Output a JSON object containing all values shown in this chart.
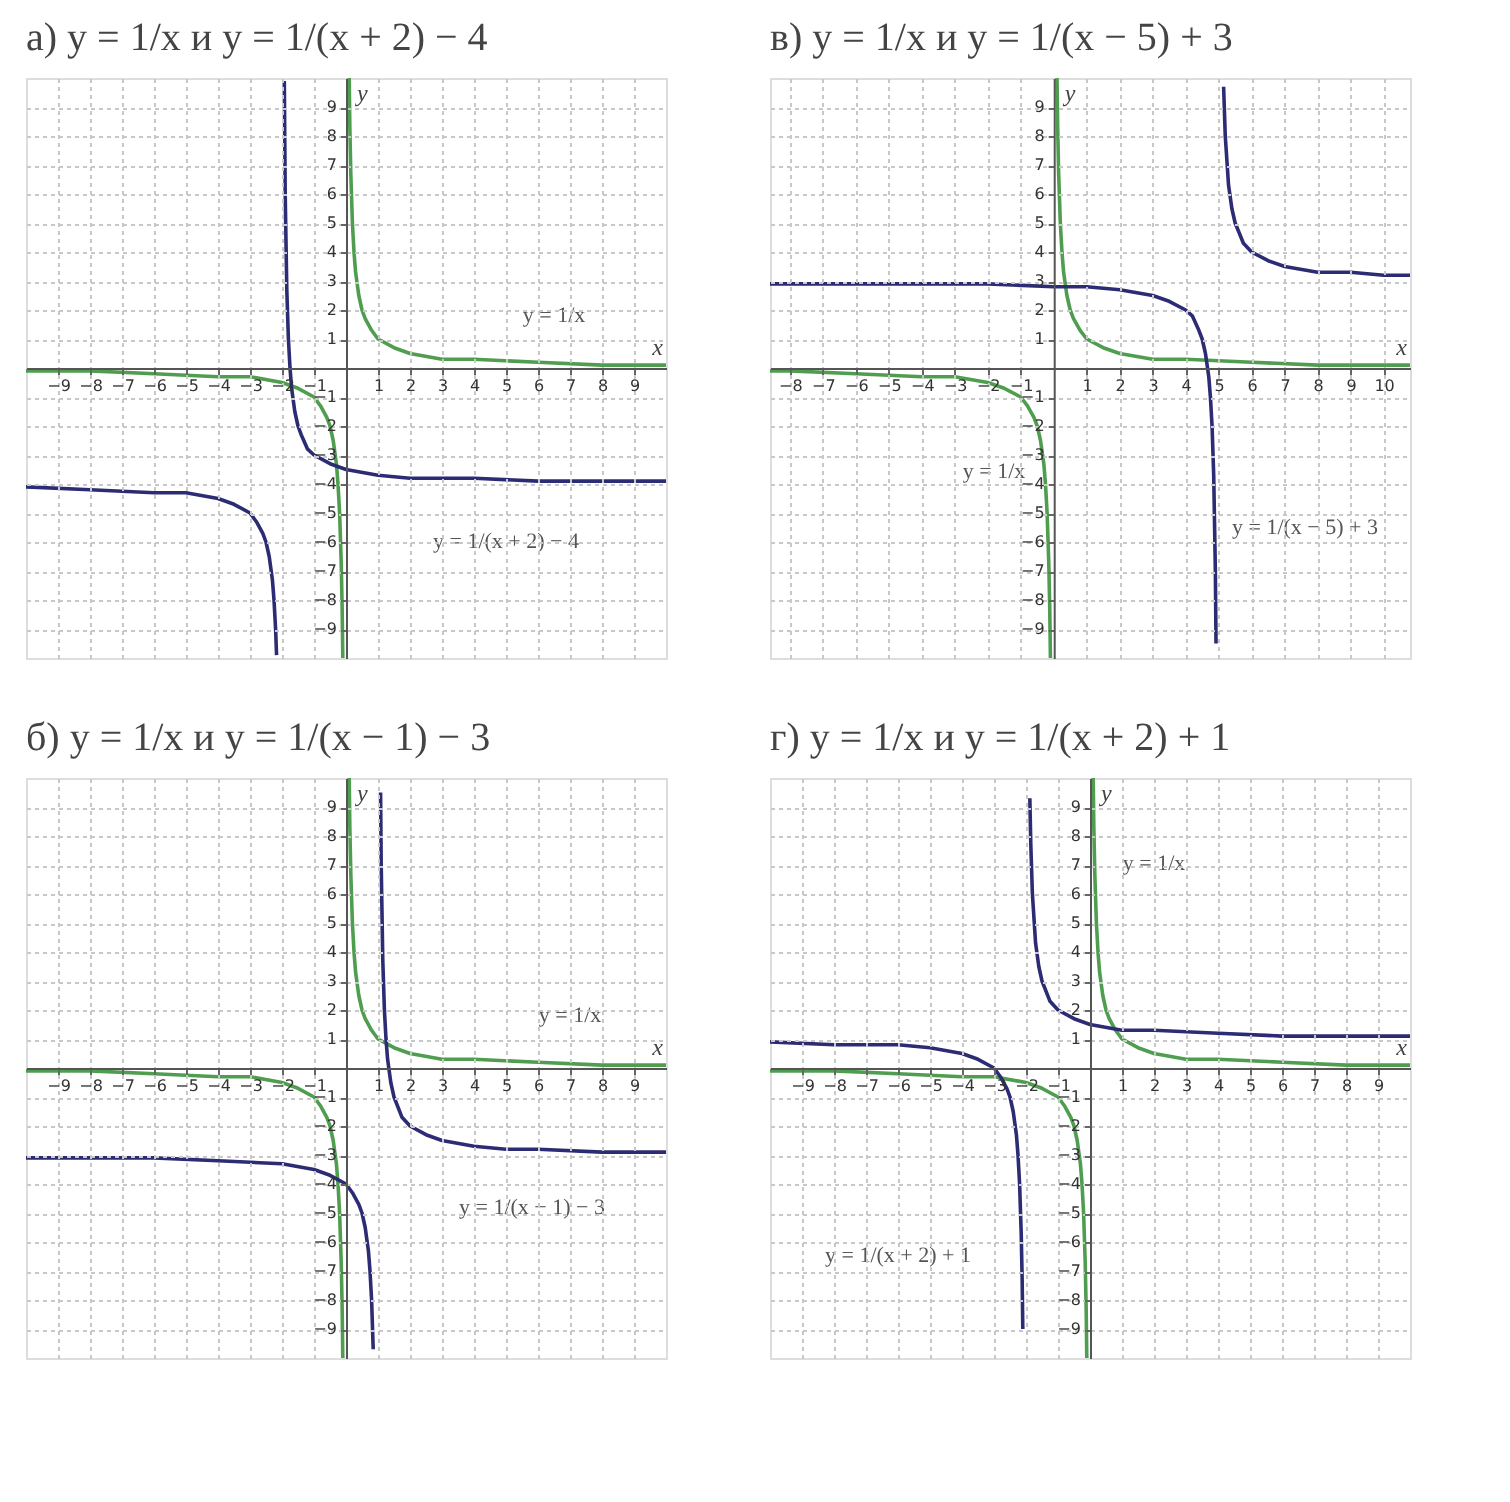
{
  "chart_data": [
    {
      "type": "line",
      "title": "а) y = 1/x и y = 1/(x + 2) − 4",
      "xlabel": "x",
      "ylabel": "y",
      "xlim": [
        -10,
        10
      ],
      "ylim": [
        -10,
        10
      ],
      "xticks": [
        -9,
        -8,
        -7,
        -6,
        -5,
        -4,
        -3,
        -2,
        -1,
        1,
        2,
        3,
        4,
        5,
        6,
        7,
        8,
        9
      ],
      "yticks": [
        -9,
        -8,
        -7,
        -6,
        -5,
        -4,
        -3,
        -2,
        -1,
        1,
        2,
        3,
        4,
        5,
        6,
        7,
        8,
        9
      ],
      "grid": true,
      "series": [
        {
          "name": "y = 1/x",
          "color": "#4f9e4f",
          "x": [
            -10,
            -8,
            -6,
            -4,
            -3,
            -2,
            -1.5,
            -1,
            -0.8,
            -0.6,
            -0.5,
            -0.4,
            -0.3,
            -0.25,
            -0.2,
            -0.15,
            -0.12,
            -0.1,
            0,
            0.1,
            0.12,
            0.15,
            0.2,
            0.25,
            0.3,
            0.4,
            0.5,
            0.6,
            0.8,
            1,
            1.5,
            2,
            3,
            4,
            6,
            8,
            10
          ],
          "values": [
            -0.1,
            -0.1,
            -0.2,
            -0.3,
            -0.3,
            -0.5,
            -0.7,
            -1,
            -1.3,
            -1.7,
            -2,
            -2.5,
            -3.3,
            -4,
            -5,
            -6.7,
            -8.3,
            -10,
            null,
            10,
            8.3,
            6.7,
            5,
            4,
            3.3,
            2.5,
            2,
            1.7,
            1.3,
            1,
            0.7,
            0.5,
            0.3,
            0.3,
            0.2,
            0.1,
            0.1
          ]
        },
        {
          "name": "y = 1/(x + 2) − 4",
          "color": "#2c2c74",
          "x": [
            -10,
            -8,
            -6,
            -5,
            -4,
            -3.5,
            -3,
            -2.8,
            -2.6,
            -2.5,
            -2.4,
            -2.3,
            -2.25,
            -2.2,
            -2.17,
            -2,
            -1.928,
            -1.9,
            -1.85,
            -1.8,
            -1.75,
            -1.7,
            -1.6,
            -1.5,
            -1.4,
            -1.2,
            -1,
            -0.5,
            0,
            1,
            2,
            4,
            6,
            8,
            10
          ],
          "values": [
            -4.1,
            -4.2,
            -4.3,
            -4.3,
            -4.5,
            -4.7,
            -5,
            -5.3,
            -5.7,
            -6,
            -6.5,
            -7.3,
            -8,
            -9,
            -9.9,
            null,
            9.9,
            6,
            2.7,
            1,
            0,
            -0.7,
            -1.5,
            -2,
            -2.3,
            -2.8,
            -3,
            -3.3,
            -3.5,
            -3.7,
            -3.8,
            -3.8,
            -3.9,
            -3.9,
            -3.9
          ]
        }
      ]
    },
    {
      "type": "line",
      "title": "в) y = 1/x и y = 1/(x − 5) + 3",
      "xlabel": "x",
      "ylabel": "y",
      "xlim": [
        -8.6,
        10.8
      ],
      "ylim": [
        -10,
        10
      ],
      "xticks": [
        -8,
        -7,
        -6,
        -5,
        -4,
        -3,
        -2,
        -1,
        1,
        2,
        3,
        4,
        5,
        6,
        7,
        8,
        9,
        10
      ],
      "yticks": [
        -9,
        -8,
        -7,
        -6,
        -5,
        -4,
        -3,
        -2,
        -1,
        1,
        2,
        3,
        4,
        5,
        6,
        7,
        8,
        9
      ],
      "grid": true,
      "series": [
        {
          "name": "y = 1/x",
          "color": "#4f9e4f",
          "x": [
            -8.6,
            -8,
            -6,
            -4,
            -3,
            -2,
            -1.5,
            -1,
            -0.8,
            -0.6,
            -0.5,
            -0.4,
            -0.3,
            -0.25,
            -0.2,
            -0.15,
            -0.12,
            -0.1,
            0,
            0.1,
            0.12,
            0.15,
            0.2,
            0.25,
            0.3,
            0.4,
            0.5,
            0.6,
            0.8,
            1,
            1.5,
            2,
            3,
            4,
            6,
            8,
            10,
            10.8
          ],
          "values": [
            -0.1,
            -0.1,
            -0.2,
            -0.3,
            -0.3,
            -0.5,
            -0.7,
            -1,
            -1.3,
            -1.7,
            -2,
            -2.5,
            -3.3,
            -4,
            -5,
            -6.7,
            -8.3,
            -10,
            null,
            10,
            8.3,
            6.7,
            5,
            4,
            3.3,
            2.5,
            2,
            1.7,
            1.3,
            1,
            0.7,
            0.5,
            0.3,
            0.3,
            0.2,
            0.1,
            0.1,
            0.1
          ]
        },
        {
          "name": "y = 1/(x − 5) + 3",
          "color": "#2c2c74",
          "x": [
            -8.6,
            -6,
            -4,
            -2,
            0,
            1,
            2,
            3,
            3.5,
            4,
            4.2,
            4.4,
            4.5,
            4.6,
            4.7,
            4.75,
            4.8,
            4.85,
            4.9,
            4.92,
            5,
            5.15,
            5.2,
            5.3,
            5.4,
            5.5,
            5.75,
            6,
            6.5,
            7,
            8,
            9,
            10,
            10.8
          ],
          "values": [
            2.9,
            2.9,
            2.9,
            2.9,
            2.8,
            2.8,
            2.7,
            2.5,
            2.3,
            2,
            1.8,
            1.3,
            1,
            0.5,
            -0.3,
            -1,
            -2,
            -3.7,
            -7,
            -9.5,
            null,
            9.7,
            8,
            6.3,
            5.5,
            5,
            4.3,
            4,
            3.7,
            3.5,
            3.3,
            3.3,
            3.2,
            3.2
          ]
        }
      ]
    },
    {
      "type": "line",
      "title": "б) y = 1/x и y = 1/(x − 1) − 3",
      "xlabel": "x",
      "ylabel": "y",
      "xlim": [
        -10,
        10
      ],
      "ylim": [
        -10,
        10
      ],
      "xticks": [
        -9,
        -8,
        -7,
        -6,
        -5,
        -4,
        -3,
        -2,
        -1,
        1,
        2,
        3,
        4,
        5,
        6,
        7,
        8,
        9
      ],
      "yticks": [
        -9,
        -8,
        -7,
        -6,
        -5,
        -4,
        -3,
        -2,
        -1,
        1,
        2,
        3,
        4,
        5,
        6,
        7,
        8,
        9
      ],
      "grid": true,
      "series": [
        {
          "name": "y = 1/x",
          "color": "#4f9e4f",
          "x": [
            -10,
            -8,
            -6,
            -4,
            -3,
            -2,
            -1.5,
            -1,
            -0.8,
            -0.6,
            -0.5,
            -0.4,
            -0.3,
            -0.25,
            -0.2,
            -0.15,
            -0.12,
            -0.1,
            0,
            0.1,
            0.12,
            0.15,
            0.2,
            0.25,
            0.3,
            0.4,
            0.5,
            0.6,
            0.8,
            1,
            1.5,
            2,
            3,
            4,
            6,
            8,
            10
          ],
          "values": [
            -0.1,
            -0.1,
            -0.2,
            -0.3,
            -0.3,
            -0.5,
            -0.7,
            -1,
            -1.3,
            -1.7,
            -2,
            -2.5,
            -3.3,
            -4,
            -5,
            -6.7,
            -8.3,
            -10,
            null,
            10,
            8.3,
            6.7,
            5,
            4,
            3.3,
            2.5,
            2,
            1.7,
            1.3,
            1,
            0.7,
            0.5,
            0.3,
            0.3,
            0.2,
            0.1,
            0.1
          ]
        },
        {
          "name": "y = 1/(x − 1) − 3",
          "color": "#2c2c74",
          "x": [
            -10,
            -8,
            -6,
            -4,
            -2,
            -1,
            -0.5,
            0,
            0.2,
            0.4,
            0.5,
            0.6,
            0.7,
            0.75,
            0.8,
            0.85,
            1,
            1.08,
            1.1,
            1.15,
            1.2,
            1.25,
            1.3,
            1.4,
            1.5,
            1.75,
            2,
            2.5,
            3,
            4,
            5,
            6,
            8,
            10
          ],
          "values": [
            -3.1,
            -3.1,
            -3.1,
            -3.2,
            -3.3,
            -3.5,
            -3.7,
            -4,
            -4.3,
            -4.7,
            -5,
            -5.5,
            -6.3,
            -7,
            -8,
            -9.7,
            null,
            9.5,
            7,
            3.7,
            2,
            1,
            0.3,
            -0.5,
            -1,
            -1.7,
            -2,
            -2.3,
            -2.5,
            -2.7,
            -2.8,
            -2.8,
            -2.9,
            -2.9
          ]
        }
      ]
    },
    {
      "type": "line",
      "title": "г) y = 1/x и y = 1/(x + 2) + 1",
      "xlabel": "x",
      "ylabel": "y",
      "xlim": [
        -10,
        10
      ],
      "ylim": [
        -10,
        10
      ],
      "xticks": [
        -9,
        -8,
        -7,
        -6,
        -5,
        -4,
        -3,
        -2,
        -1,
        1,
        2,
        3,
        4,
        5,
        6,
        7,
        8,
        9
      ],
      "yticks": [
        -9,
        -8,
        -7,
        -6,
        -5,
        -4,
        -3,
        -2,
        -1,
        1,
        2,
        3,
        4,
        5,
        6,
        7,
        8,
        9
      ],
      "grid": true,
      "series": [
        {
          "name": "y = 1/x",
          "color": "#4f9e4f",
          "x": [
            -10,
            -8,
            -6,
            -4,
            -3,
            -2,
            -1.5,
            -1,
            -0.8,
            -0.6,
            -0.5,
            -0.4,
            -0.3,
            -0.25,
            -0.2,
            -0.15,
            -0.12,
            -0.1,
            0,
            0.1,
            0.12,
            0.15,
            0.2,
            0.25,
            0.3,
            0.4,
            0.5,
            0.6,
            0.8,
            1,
            1.5,
            2,
            3,
            4,
            6,
            8,
            10
          ],
          "values": [
            -0.1,
            -0.1,
            -0.2,
            -0.3,
            -0.3,
            -0.5,
            -0.7,
            -1,
            -1.3,
            -1.7,
            -2,
            -2.5,
            -3.3,
            -4,
            -5,
            -6.7,
            -8.3,
            -10,
            null,
            10,
            8.3,
            6.7,
            5,
            4,
            3.3,
            2.5,
            2,
            1.7,
            1.3,
            1,
            0.7,
            0.5,
            0.3,
            0.3,
            0.2,
            0.1,
            0.1
          ]
        },
        {
          "name": "y = 1/(x + 2) + 1",
          "color": "#2c2c74",
          "x": [
            -10,
            -8,
            -6,
            -5,
            -4,
            -3.5,
            -3,
            -2.8,
            -2.6,
            -2.5,
            -2.4,
            -2.3,
            -2.25,
            -2.2,
            -2.15,
            -2.12,
            -2.1,
            -2,
            -1.88,
            -1.85,
            -1.8,
            -1.7,
            -1.6,
            -1.5,
            -1.25,
            -1,
            -0.5,
            0,
            1,
            2,
            4,
            6,
            8,
            10
          ],
          "values": [
            0.9,
            0.8,
            0.8,
            0.7,
            0.5,
            0.3,
            0,
            -0.3,
            -0.7,
            -1,
            -1.5,
            -2.3,
            -3,
            -4,
            -5.7,
            -7.3,
            -9,
            null,
            9.3,
            7.7,
            6,
            4.3,
            3.5,
            3,
            2.3,
            2,
            1.7,
            1.5,
            1.3,
            1.3,
            1.2,
            1.1,
            1.1,
            1.1
          ]
        }
      ]
    }
  ]
}
